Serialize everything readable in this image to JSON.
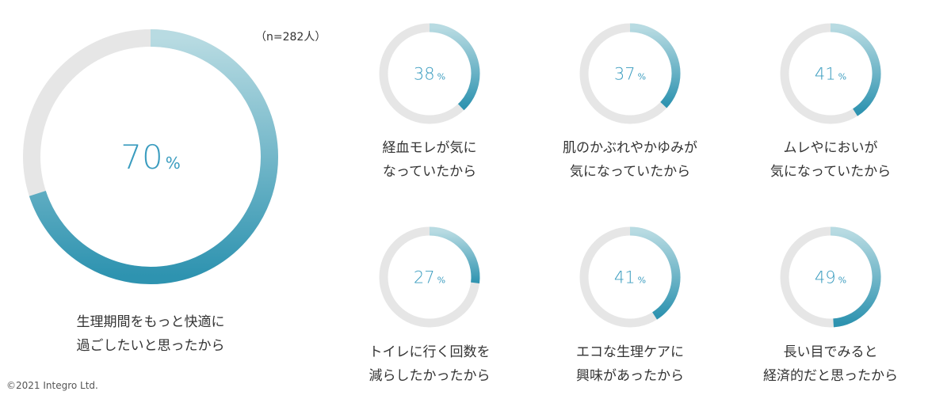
{
  "sample_note": "（n=282人）",
  "copyright": "©2021 Integro Ltd.",
  "colors": {
    "track": "#e6e6e6",
    "gradient_light": "#b8dbe2",
    "gradient_dark": "#2e93b0",
    "value_text": "#3a9cbf"
  },
  "chart_data": [
    {
      "type": "pie",
      "id": "main",
      "value": 70,
      "unit": "%",
      "label_lines": [
        "生理期間をもっと快適に",
        "過ごしたいと思ったから"
      ]
    },
    {
      "type": "pie",
      "id": "r1",
      "value": 38,
      "unit": "%",
      "label_lines": [
        "経血モレが気に",
        "なっていたから"
      ]
    },
    {
      "type": "pie",
      "id": "r2",
      "value": 37,
      "unit": "%",
      "label_lines": [
        "肌のかぶれやかゆみが",
        "気になっていたから"
      ]
    },
    {
      "type": "pie",
      "id": "r3",
      "value": 41,
      "unit": "%",
      "label_lines": [
        "ムレやにおいが",
        "気になっていたから"
      ]
    },
    {
      "type": "pie",
      "id": "r4",
      "value": 27,
      "unit": "%",
      "label_lines": [
        "トイレに行く回数を",
        "減らしたかったから"
      ]
    },
    {
      "type": "pie",
      "id": "r5",
      "value": 41,
      "unit": "%",
      "label_lines": [
        "エコな生理ケアに",
        "興味があったから"
      ]
    },
    {
      "type": "pie",
      "id": "r6",
      "value": 49,
      "unit": "%",
      "label_lines": [
        "長い目でみると",
        "経済的だと思ったから"
      ]
    }
  ]
}
